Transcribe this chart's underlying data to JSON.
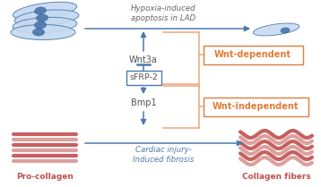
{
  "bg_color": "#ffffff",
  "blue": "#4E7AAD",
  "orange": "#E07B39",
  "brace_color": "#E8A87C",
  "cell_fill": "#C5D9F1",
  "cell_edge": "#4E7AAD",
  "nucleus_fill": "#4E7AAD",
  "red_col": "#C0504D",
  "red_light": "#D99694",
  "top_label": "Hypoxia-induced\napoptosis in LAD",
  "wnt3a_label": "Wnt3a",
  "sfrp_label": "sFRP-2",
  "bmp1_label": "Bmp1",
  "bottom_label": "Cardiac injury-\nInduced fibrosis",
  "wnt_dep_label": "Wnt-dependent",
  "wnt_indep_label": "Wnt-independent",
  "procollagen_label": "Pro-collagen",
  "collagen_label": "Collagen fibers"
}
